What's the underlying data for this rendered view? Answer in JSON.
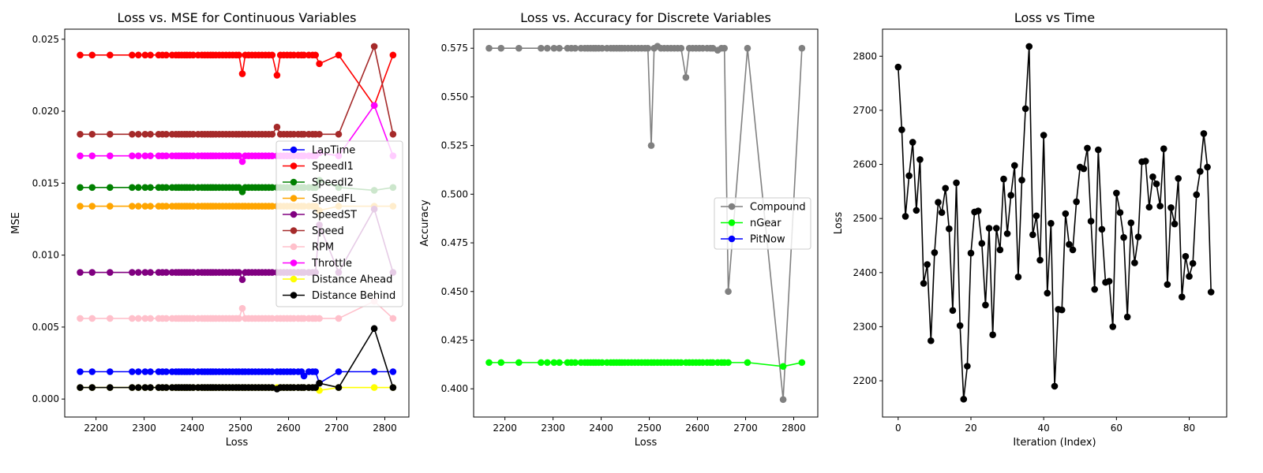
{
  "chart_data": [
    {
      "type": "line",
      "title": "Loss vs. MSE for Continuous Variables",
      "xlabel": "Loss",
      "ylabel": "MSE",
      "xlim": [
        2135,
        2850
      ],
      "ylim": [
        -0.00125,
        0.0257
      ],
      "xticks": [
        2200,
        2300,
        2400,
        2500,
        2600,
        2700,
        2800
      ],
      "xtick_labels": [
        "2200",
        "2300",
        "2400",
        "2500",
        "2600",
        "2700",
        "2800"
      ],
      "yticks": [
        0.0,
        0.005,
        0.01,
        0.015,
        0.02,
        0.025
      ],
      "ytick_labels": [
        "0.000",
        "0.005",
        "0.010",
        "0.015",
        "0.020",
        "0.025"
      ],
      "legend_position": "center-right",
      "grid": false,
      "x": [
        2167,
        2192,
        2229,
        2275,
        2288,
        2302,
        2313,
        2330,
        2338,
        2346,
        2358,
        2366,
        2372,
        2378,
        2384,
        2389,
        2395,
        2402,
        2412,
        2420,
        2426,
        2432,
        2438,
        2443,
        2449,
        2456,
        2463,
        2470,
        2477,
        2484,
        2491,
        2497,
        2504,
        2510,
        2517,
        2524,
        2531,
        2538,
        2545,
        2552,
        2559,
        2566,
        2576,
        2583,
        2590,
        2597,
        2604,
        2611,
        2620,
        2627,
        2632,
        2642,
        2650,
        2656,
        2664,
        2704,
        2778,
        2817
      ],
      "series": [
        {
          "name": "LapTime",
          "color": "#0000ff",
          "base": 0.0019,
          "dev": [
            [
              2632,
              0.0016
            ],
            [
              2664,
              0.0011
            ],
            [
              2778,
              0.0019
            ]
          ]
        },
        {
          "name": "SpeedI1",
          "color": "#ff0000",
          "base": 0.0239,
          "dev": [
            [
              2504,
              0.0226
            ],
            [
              2576,
              0.0225
            ],
            [
              2632,
              0.0239
            ],
            [
              2664,
              0.0233
            ],
            [
              2778,
              0.0204
            ]
          ]
        },
        {
          "name": "SpeedI2",
          "color": "#008000",
          "base": 0.0147,
          "dev": [
            [
              2504,
              0.0144
            ],
            [
              2664,
              0.0152
            ],
            [
              2778,
              0.0145
            ]
          ]
        },
        {
          "name": "SpeedFL",
          "color": "#ffa500",
          "base": 0.0134,
          "dev": [
            [
              2664,
              0.0131
            ],
            [
              2778,
              0.0134
            ]
          ]
        },
        {
          "name": "SpeedST",
          "color": "#800080",
          "base": 0.0088,
          "dev": [
            [
              2504,
              0.0083
            ],
            [
              2664,
              0.0121
            ],
            [
              2778,
              0.0132
            ]
          ]
        },
        {
          "name": "Speed",
          "color": "#a52a2a",
          "base": 0.0184,
          "dev": [
            [
              2576,
              0.0189
            ],
            [
              2664,
              0.0184
            ],
            [
              2778,
              0.0245
            ]
          ]
        },
        {
          "name": "RPM",
          "color": "#ffc0cb",
          "base": 0.0056,
          "dev": [
            [
              2504,
              0.0063
            ],
            [
              2664,
              0.0056
            ],
            [
              2778,
              0.0068
            ]
          ]
        },
        {
          "name": "Throttle",
          "color": "#ff00ff",
          "base": 0.0169,
          "dev": [
            [
              2504,
              0.0165
            ],
            [
              2664,
              0.0171
            ],
            [
              2778,
              0.0204
            ]
          ]
        },
        {
          "name": "Distance Ahead",
          "color": "#ffff00",
          "base": 0.0008,
          "dev": [
            [
              2664,
              0.0006
            ],
            [
              2778,
              0.0008
            ]
          ]
        },
        {
          "name": "Distance Behind",
          "color": "#000000",
          "base": 0.0008,
          "dev": [
            [
              2576,
              0.0007
            ],
            [
              2664,
              0.0011
            ],
            [
              2778,
              0.0049
            ]
          ]
        }
      ]
    },
    {
      "type": "line",
      "title": "Loss vs. Accuracy for Discrete Variables",
      "xlabel": "Loss",
      "ylabel": "Accuracy",
      "xlim": [
        2135,
        2850
      ],
      "ylim": [
        0.3855,
        0.5848
      ],
      "xticks": [
        2200,
        2300,
        2400,
        2500,
        2600,
        2700,
        2800
      ],
      "xtick_labels": [
        "2200",
        "2300",
        "2400",
        "2500",
        "2600",
        "2700",
        "2800"
      ],
      "yticks": [
        0.4,
        0.425,
        0.45,
        0.475,
        0.5,
        0.525,
        0.55,
        0.575
      ],
      "ytick_labels": [
        "0.400",
        "0.425",
        "0.450",
        "0.475",
        "0.500",
        "0.525",
        "0.550",
        "0.575"
      ],
      "legend_position": "center-right",
      "grid": false,
      "x": [
        2167,
        2192,
        2229,
        2275,
        2288,
        2302,
        2313,
        2330,
        2338,
        2346,
        2358,
        2366,
        2372,
        2378,
        2384,
        2389,
        2395,
        2402,
        2412,
        2420,
        2426,
        2432,
        2438,
        2443,
        2449,
        2456,
        2463,
        2470,
        2477,
        2484,
        2491,
        2497,
        2504,
        2510,
        2517,
        2524,
        2531,
        2538,
        2545,
        2552,
        2559,
        2566,
        2576,
        2583,
        2590,
        2597,
        2604,
        2611,
        2620,
        2627,
        2632,
        2642,
        2650,
        2656,
        2664,
        2704,
        2778,
        2817
      ],
      "series": [
        {
          "name": "Compound",
          "color": "#808080",
          "base": 0.575,
          "dev": [
            [
              2504,
              0.525
            ],
            [
              2517,
              0.576
            ],
            [
              2576,
              0.56
            ],
            [
              2642,
              0.574
            ],
            [
              2664,
              0.45
            ],
            [
              2778,
              0.3945
            ]
          ]
        },
        {
          "name": "nGear",
          "color": "#00ff00",
          "base": 0.4135,
          "dev": [
            [
              2778,
              0.4115
            ]
          ]
        },
        {
          "name": "PitNow",
          "color": "#0000ff",
          "base": null,
          "dev": []
        }
      ]
    },
    {
      "type": "line",
      "title": "Loss vs Time",
      "xlabel": "Iteration (Index)",
      "ylabel": "Loss",
      "xlim": [
        -4.3,
        90.3
      ],
      "ylim": [
        2133,
        2850
      ],
      "xticks": [
        0,
        20,
        40,
        60,
        80
      ],
      "xtick_labels": [
        "0",
        "20",
        "40",
        "60",
        "80"
      ],
      "yticks": [
        2200,
        2300,
        2400,
        2500,
        2600,
        2700,
        2800
      ],
      "ytick_labels": [
        "2200",
        "2300",
        "2400",
        "2500",
        "2600",
        "2700",
        "2800"
      ],
      "grid": false,
      "series": [
        {
          "name": "",
          "color": "#000000",
          "values": [
            2780,
            2664,
            2504,
            2579,
            2641,
            2515,
            2609,
            2380,
            2415,
            2274,
            2437,
            2530,
            2511,
            2556,
            2481,
            2330,
            2566,
            2302,
            2166,
            2227,
            2436,
            2512,
            2514,
            2454,
            2340,
            2482,
            2285,
            2482,
            2442,
            2573,
            2472,
            2543,
            2598,
            2392,
            2571,
            2703,
            2818,
            2470,
            2505,
            2423,
            2654,
            2362,
            2491,
            2190,
            2332,
            2331,
            2509,
            2452,
            2442,
            2531,
            2595,
            2592,
            2630,
            2495,
            2369,
            2627,
            2480,
            2382,
            2384,
            2300,
            2547,
            2511,
            2465,
            2318,
            2492,
            2418,
            2466,
            2605,
            2606,
            2521,
            2577,
            2564,
            2523,
            2629,
            2378,
            2520,
            2490,
            2574,
            2355,
            2430,
            2393,
            2417,
            2544,
            2587,
            2657,
            2595,
            2364
          ]
        }
      ]
    }
  ]
}
